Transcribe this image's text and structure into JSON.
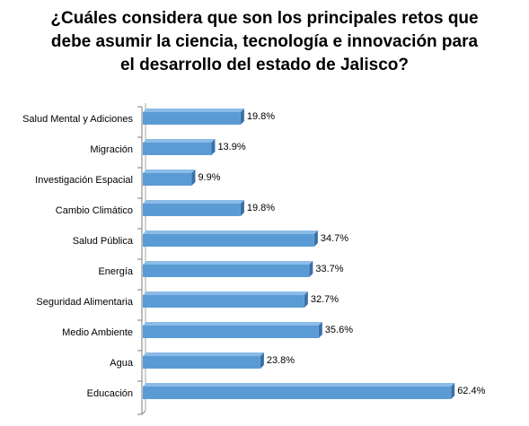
{
  "title_lines": [
    "¿Cuáles considera  que son los principales  retos que",
    "debe asumir  la ciencia,  tecnología  e innovación  para",
    "el desarrollo  del estado  de Jalisco?"
  ],
  "chart_data": {
    "type": "bar",
    "orientation": "horizontal",
    "title": "¿Cuáles considera  que son los principales  retos que debe asumir  la ciencia,  tecnología  e innovación  para el desarrollo  del estado  de Jalisco?",
    "categories": [
      "Salud Mental y Adiciones",
      "Migración",
      "Investigación Espacial",
      "Cambio Climático",
      "Salud Pública",
      "Energía",
      "Seguridad Alimentaria",
      "Medio Ambiente",
      "Agua",
      "Educación"
    ],
    "values": [
      19.8,
      13.9,
      9.9,
      19.8,
      34.7,
      33.7,
      32.7,
      35.6,
      23.8,
      62.4
    ],
    "labels": [
      "19.8%",
      "13.9%",
      "9.9%",
      "19.8%",
      "34.7%",
      "33.7%",
      "32.7%",
      "35.6%",
      "23.8%",
      "62.4%"
    ],
    "xlim": [
      0,
      70
    ],
    "grid": false,
    "legend": "none",
    "colors": {
      "bar_front": "#5b9bd5",
      "bar_top": "#8bbce8",
      "bar_side": "#3a70a6",
      "axis": "#7f7f7f"
    }
  }
}
